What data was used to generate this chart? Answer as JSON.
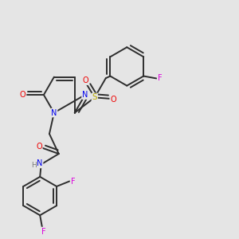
{
  "background_color": "#e5e5e5",
  "bond_color": "#2d2d2d",
  "atom_colors": {
    "N": "#0000ee",
    "O": "#ee0000",
    "S": "#bbaa00",
    "F": "#dd00dd",
    "H": "#777777",
    "C": "#2d2d2d"
  },
  "figsize": [
    3.0,
    3.0
  ],
  "dpi": 100
}
